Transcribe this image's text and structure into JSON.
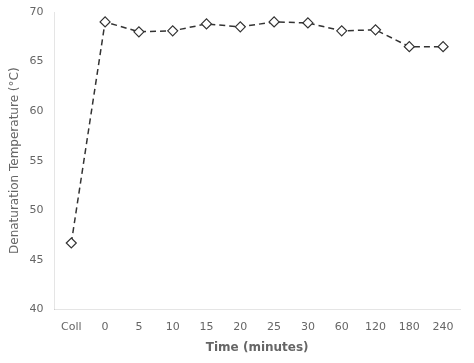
{
  "chart_data": {
    "type": "line",
    "categories": [
      "Coll",
      "0",
      "5",
      "10",
      "15",
      "20",
      "25",
      "30",
      "60",
      "120",
      "180",
      "240"
    ],
    "values": [
      46.7,
      69.0,
      68.0,
      68.1,
      68.8,
      68.5,
      69.0,
      68.9,
      68.1,
      68.2,
      66.5,
      66.5
    ],
    "xlabel": "Time (minutes)",
    "ylabel": "Denaturation Temperature (°C)",
    "ylim": [
      40,
      70
    ],
    "yticks": [
      40,
      45,
      50,
      55,
      60,
      65,
      70
    ],
    "color": "#333333",
    "marker": "diamond",
    "line_style": "dashed",
    "grid": false
  }
}
